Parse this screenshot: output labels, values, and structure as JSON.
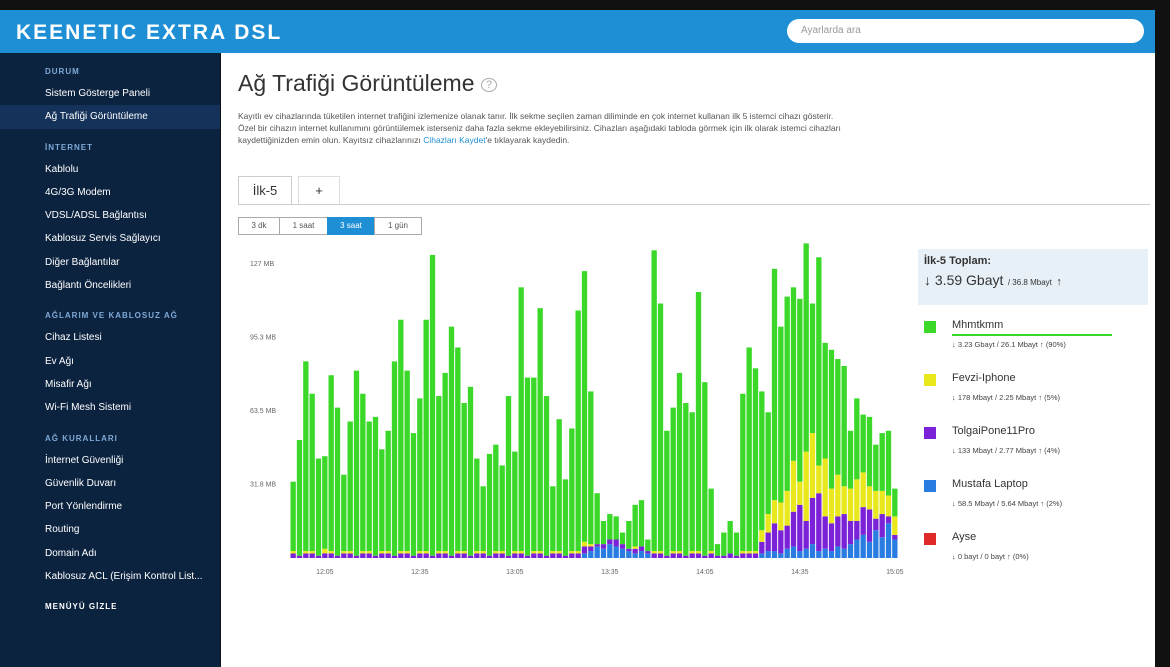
{
  "header": {
    "brand": "KEENETIC EXTRA DSL",
    "search_placeholder": "Ayarlarda ara"
  },
  "sidebar": {
    "sections": [
      {
        "title": "DURUM",
        "items": [
          "Sistem Gösterge Paneli",
          "Ağ Trafiği Görüntüleme"
        ]
      },
      {
        "title": "İNTERNET",
        "items": [
          "Kablolu",
          "4G/3G Modem",
          "VDSL/ADSL Bağlantısı",
          "Kablosuz Servis Sağlayıcı",
          "Diğer Bağlantılar",
          "Bağlantı Öncelikleri"
        ]
      },
      {
        "title": "AĞLARIM VE KABLOSUZ AĞ",
        "items": [
          "Cihaz Listesi",
          "Ev Ağı",
          "Misafir Ağı",
          "Wi-Fi Mesh Sistemi"
        ]
      },
      {
        "title": "AĞ KURALLARI",
        "items": [
          "İnternet Güvenliği",
          "Güvenlik Duvarı",
          "Port Yönlendirme",
          "Routing",
          "Domain Adı",
          "Kablosuz ACL (Erişim Kontrol List..."
        ]
      }
    ],
    "hide_menu": "MENÜYÜ GİZLE"
  },
  "page": {
    "title": "Ağ Trafiği Görüntüleme",
    "help": "?",
    "description": "Kayıtlı ev cihazlarında tüketilen internet trafiğini izlemenize olanak tanır. İlk sekme seçilen zaman diliminde en çok internet kullanan ilk 5 istemci cihazı gösterir. Özel bir cihazın internet kullanımını görüntülemek isterseniz daha fazla sekme ekleyebilirsiniz. Cihazları aşağıdaki tabloda görmek için ilk olarak istemci cihazları kaydettiğinizden emin olun. Kayıtsız cihazlarınızı ",
    "link": "Cihazları Kaydet",
    "description_end": "'e tıklayarak kaydedin."
  },
  "tabs": [
    "İlk-5",
    "+"
  ],
  "time_buttons": [
    "3 dk",
    "1 saat",
    "3 saat",
    "1 gün"
  ],
  "chart_data": {
    "type": "stacked_bar",
    "categories": [
      null,
      null,
      null,
      null,
      null,
      "12:05",
      null,
      null,
      null,
      null,
      null,
      null,
      null,
      null,
      null,
      null,
      null,
      null,
      null,
      null,
      "12:35",
      null,
      null,
      null,
      null,
      null,
      null,
      null,
      null,
      null,
      null,
      null,
      null,
      null,
      null,
      "13:05",
      null,
      null,
      null,
      null,
      null,
      null,
      null,
      null,
      null,
      null,
      null,
      null,
      null,
      null,
      "13:35",
      null,
      null,
      null,
      null,
      null,
      null,
      null,
      null,
      null,
      null,
      null,
      null,
      null,
      null,
      "14:05",
      null,
      null,
      null,
      null,
      null,
      null,
      null,
      null,
      null,
      null,
      null,
      null,
      null,
      null,
      "14:35",
      null,
      null,
      null,
      null,
      null,
      null,
      null,
      null,
      null,
      null,
      null,
      null,
      null,
      null,
      "15:05"
    ],
    "ylim": [
      0,
      134
    ],
    "yticks": [
      {
        "value": 31.8,
        "label": "31.8 MB"
      },
      {
        "value": 63.5,
        "label": "63.5 MB"
      },
      {
        "value": 95.3,
        "label": "95.3 MB"
      },
      {
        "value": 127,
        "label": "127 MB"
      }
    ],
    "grid": false,
    "series": [
      {
        "name": "Mhmtkmm",
        "color": "#3bd82a",
        "values": [
          30,
          50,
          82,
          68,
          42,
          40,
          76,
          64,
          33,
          56,
          80,
          68,
          56,
          60,
          44,
          52,
          84,
          100,
          78,
          53,
          66,
          100,
          130,
          67,
          77,
          99,
          88,
          64,
          73,
          40,
          28,
          44,
          46,
          37,
          69,
          43,
          114,
          77,
          75,
          105,
          69,
          28,
          57,
          33,
          53,
          104,
          117,
          66,
          22,
          10,
          11,
          10,
          5,
          12,
          18,
          20,
          5,
          130,
          107,
          54,
          62,
          77,
          66,
          60,
          112,
          75,
          27,
          5,
          10,
          14,
          10,
          68,
          88,
          79,
          60,
          44,
          100,
          76,
          84,
          75,
          79,
          90,
          56,
          90,
          50,
          60,
          50,
          52,
          25,
          35,
          25,
          30,
          20,
          25,
          28,
          12
        ]
      },
      {
        "name": "Fevzi-Iphone",
        "color": "#e8e81c",
        "values": [
          1,
          0,
          1,
          1,
          0,
          2,
          1,
          0,
          1,
          1,
          0,
          1,
          1,
          0,
          1,
          1,
          0,
          1,
          1,
          0,
          1,
          1,
          0,
          1,
          1,
          0,
          1,
          1,
          0,
          1,
          1,
          0,
          1,
          1,
          0,
          1,
          1,
          0,
          1,
          1,
          0,
          1,
          1,
          0,
          1,
          1,
          2,
          1,
          0,
          0,
          0,
          0,
          0,
          0,
          1,
          0,
          0,
          1,
          1,
          0,
          1,
          1,
          0,
          1,
          1,
          0,
          1,
          0,
          0,
          0,
          0,
          1,
          1,
          1,
          5,
          8,
          10,
          12,
          15,
          22,
          10,
          30,
          28,
          12,
          25,
          15,
          18,
          12,
          14,
          18,
          15,
          10,
          12,
          10,
          9,
          8
        ]
      },
      {
        "name": "TolgaiPone11Pro",
        "color": "#7b22d8",
        "values": [
          2,
          1,
          2,
          2,
          1,
          2,
          2,
          1,
          2,
          2,
          1,
          2,
          2,
          1,
          2,
          2,
          1,
          2,
          2,
          1,
          2,
          2,
          1,
          2,
          2,
          1,
          2,
          2,
          1,
          2,
          2,
          1,
          2,
          2,
          1,
          2,
          2,
          1,
          2,
          2,
          1,
          2,
          2,
          1,
          2,
          2,
          3,
          2,
          1,
          2,
          2,
          3,
          2,
          1,
          2,
          2,
          1,
          2,
          2,
          1,
          2,
          2,
          1,
          2,
          2,
          1,
          2,
          1,
          1,
          2,
          1,
          2,
          2,
          2,
          5,
          8,
          12,
          10,
          10,
          15,
          20,
          12,
          20,
          25,
          14,
          12,
          13,
          15,
          10,
          8,
          12,
          14,
          5,
          10,
          3,
          2
        ]
      },
      {
        "name": "Mustafa Laptop",
        "color": "#2a7de0",
        "values": [
          0,
          0,
          0,
          0,
          0,
          0,
          0,
          0,
          0,
          0,
          0,
          0,
          0,
          0,
          0,
          0,
          0,
          0,
          0,
          0,
          0,
          0,
          0,
          0,
          0,
          0,
          0,
          0,
          0,
          0,
          0,
          0,
          0,
          0,
          0,
          0,
          0,
          0,
          0,
          0,
          0,
          0,
          0,
          0,
          0,
          0,
          2,
          3,
          5,
          4,
          6,
          5,
          4,
          3,
          2,
          3,
          2,
          0,
          0,
          0,
          0,
          0,
          0,
          0,
          0,
          0,
          0,
          0,
          0,
          0,
          0,
          0,
          0,
          0,
          2,
          3,
          3,
          2,
          4,
          5,
          3,
          4,
          6,
          3,
          4,
          3,
          5,
          4,
          6,
          8,
          10,
          7,
          12,
          9,
          15,
          8
        ]
      },
      {
        "name": "Ayse",
        "color": "#e02a2a",
        "values": [
          0,
          0,
          0,
          0,
          0,
          0,
          0,
          0,
          0,
          0,
          0,
          0,
          0,
          0,
          0,
          0,
          0,
          0,
          0,
          0,
          0,
          0,
          0,
          0,
          0,
          0,
          0,
          0,
          0,
          0,
          0,
          0,
          0,
          0,
          0,
          0,
          0,
          0,
          0,
          0,
          0,
          0,
          0,
          0,
          0,
          0,
          0,
          0,
          0,
          0,
          0,
          0,
          0,
          0,
          0,
          0,
          0,
          0,
          0,
          0,
          0,
          0,
          0,
          0,
          0,
          0,
          0,
          0,
          0,
          0,
          0,
          0,
          0,
          0,
          0,
          0,
          0,
          0,
          0,
          0,
          0,
          0,
          0,
          0,
          0,
          0,
          0,
          0,
          0,
          0,
          0,
          0,
          0,
          0,
          0,
          0
        ]
      }
    ]
  },
  "legend_panel": {
    "title": "İlk-5 Toplam:",
    "download": "3.59 Gbayt",
    "upload": "/ 36.8 Mbayt",
    "items": [
      {
        "traffic": "3.23 Gbayt / 26.1 Mbayt",
        "share": "(90%)"
      },
      {
        "traffic": "178 Mbayt / 2.25 Mbayt",
        "share": "(5%)"
      },
      {
        "traffic": "133 Mbayt / 2.77 Mbayt",
        "share": "(4%)"
      },
      {
        "traffic": "58.5 Mbayt / 5.64 Mbayt",
        "share": "(2%)"
      },
      {
        "traffic": "0 bayt / 0 bayt",
        "share": "(0%)"
      }
    ]
  }
}
